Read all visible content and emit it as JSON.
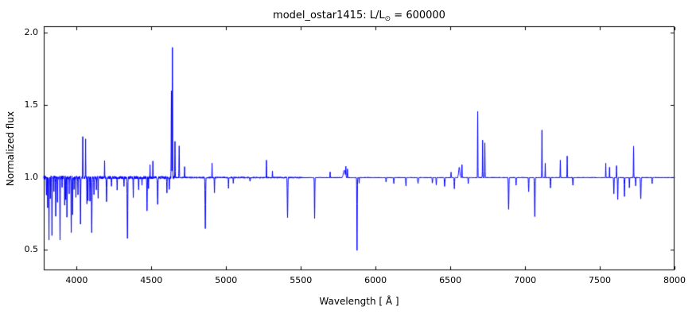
{
  "figure": {
    "background": "#ffffff",
    "frame_color": "#000000"
  },
  "chart_data": {
    "type": "line",
    "title": "model_ostar1415: L/L⊙ = 600000",
    "title_parts": {
      "prefix": "model_ostar1415: L/L",
      "sun_symbol": "⊙",
      "suffix": " = 600000"
    },
    "xlabel": "Wavelength [ Å ]",
    "ylabel": "Normalized flux",
    "line_color": "#0000ff",
    "baseline_flux": 1.0,
    "xlim": [
      3780,
      8000
    ],
    "ylim": [
      0.36,
      2.045
    ],
    "x_ticks": [
      4000,
      4500,
      5000,
      5500,
      6000,
      6500,
      7000,
      7500,
      8000
    ],
    "x_tick_labels": [
      "4000",
      "4500",
      "5000",
      "5500",
      "6000",
      "6500",
      "7000",
      "7500",
      "8000"
    ],
    "y_ticks": [
      0.5,
      1.0,
      1.5,
      2.0
    ],
    "y_tick_labels": [
      "0.5",
      "1.0",
      "1.5",
      "2.0"
    ],
    "grid": false,
    "legend": null,
    "sample_step_angstrom": 1,
    "features_absorption": [
      [
        3798,
        0.88,
        1.5
      ],
      [
        3806,
        0.8,
        1.5
      ],
      [
        3815,
        0.58,
        1.5
      ],
      [
        3824,
        0.86,
        1.2
      ],
      [
        3835,
        0.6,
        1.8
      ],
      [
        3848,
        0.9,
        1.2
      ],
      [
        3860,
        0.74,
        1.5
      ],
      [
        3872,
        0.82,
        1.2
      ],
      [
        3889,
        0.58,
        1.8
      ],
      [
        3903,
        0.92,
        1.2
      ],
      [
        3920,
        0.82,
        1.2
      ],
      [
        3927,
        0.85,
        1.2
      ],
      [
        3935,
        0.72,
        1.5
      ],
      [
        3950,
        0.9,
        1.2
      ],
      [
        3964,
        0.62,
        1.8
      ],
      [
        3973,
        0.75,
        1.5
      ],
      [
        3983,
        0.92,
        1.2
      ],
      [
        3995,
        0.86,
        1.2
      ],
      [
        4009,
        0.88,
        1.5
      ],
      [
        4026,
        0.68,
        2
      ],
      [
        4069,
        0.82,
        1.2
      ],
      [
        4076,
        0.84,
        1.2
      ],
      [
        4089,
        0.83,
        1.5
      ],
      [
        4101,
        0.62,
        2.5
      ],
      [
        4116,
        0.88,
        1.5
      ],
      [
        4132,
        0.92,
        1.2
      ],
      [
        4144,
        0.85,
        1.5
      ],
      [
        4200,
        0.83,
        2
      ],
      [
        4233,
        0.93,
        1.5
      ],
      [
        4271,
        0.91,
        1.5
      ],
      [
        4317,
        0.93,
        1.5
      ],
      [
        4340,
        0.57,
        2.5
      ],
      [
        4379,
        0.87,
        1.5
      ],
      [
        4415,
        0.91,
        1.5
      ],
      [
        4437,
        0.94,
        1.2
      ],
      [
        4471,
        0.77,
        2
      ],
      [
        4481,
        0.93,
        1.2
      ],
      [
        4542,
        0.82,
        2.5
      ],
      [
        4604,
        0.89,
        1.5
      ],
      [
        4620,
        0.91,
        1.5
      ],
      [
        4861,
        0.65,
        2.5
      ],
      [
        4922,
        0.9,
        1.5
      ],
      [
        5016,
        0.93,
        1.5
      ],
      [
        5048,
        0.96,
        1.5
      ],
      [
        5160,
        0.97,
        2
      ],
      [
        5411,
        0.72,
        2.5
      ],
      [
        5592,
        0.72,
        2
      ],
      [
        5876,
        0.5,
        2
      ],
      [
        5890,
        0.96,
        1.2
      ],
      [
        6070,
        0.97,
        2
      ],
      [
        6122,
        0.96,
        2
      ],
      [
        6203,
        0.94,
        2
      ],
      [
        6284,
        0.96,
        3
      ],
      [
        6380,
        0.96,
        2
      ],
      [
        6406,
        0.95,
        2
      ],
      [
        6462,
        0.94,
        2.5
      ],
      [
        6527,
        0.92,
        2
      ],
      [
        6620,
        0.96,
        2
      ],
      [
        6890,
        0.78,
        2.5
      ],
      [
        6940,
        0.95,
        2
      ],
      [
        7024,
        0.9,
        2
      ],
      [
        7065,
        0.73,
        2.5
      ],
      [
        7170,
        0.93,
        2
      ],
      [
        7320,
        0.95,
        2
      ],
      [
        7594,
        0.89,
        2
      ],
      [
        7620,
        0.85,
        2
      ],
      [
        7665,
        0.87,
        2
      ],
      [
        7698,
        0.93,
        1.5
      ],
      [
        7740,
        0.94,
        1.5
      ],
      [
        7774,
        0.85,
        2.5
      ],
      [
        7850,
        0.96,
        2
      ]
    ],
    "features_emission": [
      [
        4041,
        1.28,
        1.2
      ],
      [
        4060,
        1.26,
        1.2
      ],
      [
        4187,
        1.12,
        1.2
      ],
      [
        4491,
        1.09,
        1.2
      ],
      [
        4510,
        1.12,
        1.2
      ],
      [
        4634,
        1.6,
        1.8
      ],
      [
        4641,
        1.9,
        1.8
      ],
      [
        4658,
        1.25,
        1.5
      ],
      [
        4686,
        1.22,
        1.8
      ],
      [
        4722,
        1.08,
        1.2
      ],
      [
        4906,
        1.1,
        1.2
      ],
      [
        5270,
        1.12,
        1.5
      ],
      [
        5310,
        1.05,
        1.2
      ],
      [
        5696,
        1.04,
        2
      ],
      [
        5790,
        1.05,
        8
      ],
      [
        5801,
        1.07,
        1.5
      ],
      [
        5812,
        1.06,
        1.5
      ],
      [
        6505,
        1.04,
        1.5
      ],
      [
        6560,
        1.07,
        6
      ],
      [
        6578,
        1.09,
        1.5
      ],
      [
        6683,
        1.46,
        1.5
      ],
      [
        6716,
        1.26,
        1.5
      ],
      [
        6731,
        1.24,
        1.5
      ],
      [
        7113,
        1.33,
        1.5
      ],
      [
        7135,
        1.1,
        1.2
      ],
      [
        7236,
        1.12,
        1.5
      ],
      [
        7282,
        1.15,
        1.5
      ],
      [
        7540,
        1.1,
        1.2
      ],
      [
        7565,
        1.07,
        1.2
      ],
      [
        7612,
        1.08,
        1.2
      ],
      [
        7726,
        1.22,
        1.5
      ]
    ],
    "noise_bands": [
      {
        "upto": 4000,
        "amp": 0.013
      },
      {
        "upto": 4650,
        "amp": 0.01
      },
      {
        "upto": 5500,
        "amp": 0.005
      },
      {
        "upto": 8000,
        "amp": 0.003
      }
    ]
  }
}
